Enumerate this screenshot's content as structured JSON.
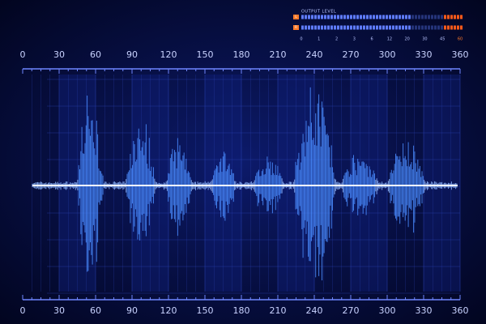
{
  "meter": {
    "title": "OUTPUT LEVEL",
    "channels": [
      "L",
      "R"
    ],
    "scale": [
      "0",
      "1",
      "2",
      "3",
      "6",
      "12",
      "20",
      "30",
      "45",
      "60"
    ]
  },
  "scale_top": [
    "0",
    "30",
    "60",
    "90",
    "120",
    "150",
    "180",
    "210",
    "240",
    "270",
    "300",
    "330",
    "360"
  ],
  "scale_bottom": [
    "0",
    "30",
    "60",
    "90",
    "120",
    "150",
    "180",
    "210",
    "240",
    "270",
    "300",
    "330",
    "360"
  ]
}
